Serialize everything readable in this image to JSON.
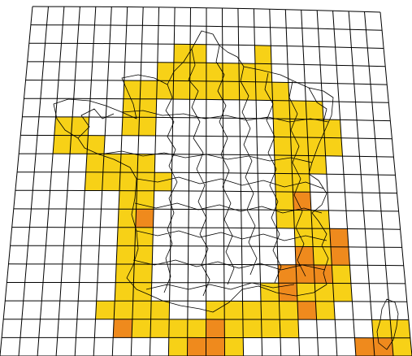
{
  "map": {
    "colors": {
      "background": "#ffffff",
      "grid_line": "#000000",
      "border_line": "#000000",
      "low": "#f7d117",
      "high": "#ef8a1d"
    },
    "grid": {
      "columns": 22,
      "rows": 19
    },
    "highlighted_cells": [
      {
        "c": 9,
        "r": 2,
        "level": "low"
      },
      {
        "c": 10,
        "r": 2,
        "level": "low"
      },
      {
        "c": 14,
        "r": 2,
        "level": "low"
      },
      {
        "c": 8,
        "r": 3,
        "level": "low"
      },
      {
        "c": 9,
        "r": 3,
        "level": "low"
      },
      {
        "c": 10,
        "r": 3,
        "level": "low"
      },
      {
        "c": 11,
        "r": 3,
        "level": "low"
      },
      {
        "c": 12,
        "r": 3,
        "level": "low"
      },
      {
        "c": 13,
        "r": 3,
        "level": "low"
      },
      {
        "c": 14,
        "r": 3,
        "level": "low"
      },
      {
        "c": 6,
        "r": 4,
        "level": "low"
      },
      {
        "c": 7,
        "r": 4,
        "level": "low"
      },
      {
        "c": 8,
        "r": 4,
        "level": "low"
      },
      {
        "c": 9,
        "r": 4,
        "level": "low"
      },
      {
        "c": 10,
        "r": 4,
        "level": "low"
      },
      {
        "c": 11,
        "r": 4,
        "level": "low"
      },
      {
        "c": 12,
        "r": 4,
        "level": "low"
      },
      {
        "c": 13,
        "r": 4,
        "level": "low"
      },
      {
        "c": 14,
        "r": 4,
        "level": "low"
      },
      {
        "c": 15,
        "r": 4,
        "level": "low"
      },
      {
        "c": 6,
        "r": 5,
        "level": "low"
      },
      {
        "c": 7,
        "r": 5,
        "level": "low"
      },
      {
        "c": 15,
        "r": 5,
        "level": "low"
      },
      {
        "c": 16,
        "r": 5,
        "level": "low"
      },
      {
        "c": 17,
        "r": 5,
        "level": "low"
      },
      {
        "c": 2,
        "r": 6,
        "level": "low"
      },
      {
        "c": 3,
        "r": 6,
        "level": "low"
      },
      {
        "c": 6,
        "r": 6,
        "level": "low"
      },
      {
        "c": 7,
        "r": 6,
        "level": "low"
      },
      {
        "c": 15,
        "r": 6,
        "level": "low"
      },
      {
        "c": 16,
        "r": 6,
        "level": "low"
      },
      {
        "c": 17,
        "r": 6,
        "level": "low"
      },
      {
        "c": 18,
        "r": 6,
        "level": "low"
      },
      {
        "c": 2,
        "r": 7,
        "level": "low"
      },
      {
        "c": 3,
        "r": 7,
        "level": "low"
      },
      {
        "c": 4,
        "r": 7,
        "level": "low"
      },
      {
        "c": 15,
        "r": 7,
        "level": "low"
      },
      {
        "c": 16,
        "r": 7,
        "level": "low"
      },
      {
        "c": 17,
        "r": 7,
        "level": "low"
      },
      {
        "c": 18,
        "r": 7,
        "level": "low"
      },
      {
        "c": 4,
        "r": 8,
        "level": "low"
      },
      {
        "c": 5,
        "r": 8,
        "level": "low"
      },
      {
        "c": 6,
        "r": 8,
        "level": "low"
      },
      {
        "c": 7,
        "r": 8,
        "level": "low"
      },
      {
        "c": 15,
        "r": 8,
        "level": "low"
      },
      {
        "c": 16,
        "r": 8,
        "level": "low"
      },
      {
        "c": 17,
        "r": 8,
        "level": "low"
      },
      {
        "c": 4,
        "r": 9,
        "level": "low"
      },
      {
        "c": 5,
        "r": 9,
        "level": "low"
      },
      {
        "c": 6,
        "r": 9,
        "level": "low"
      },
      {
        "c": 7,
        "r": 9,
        "level": "low"
      },
      {
        "c": 8,
        "r": 9,
        "level": "low"
      },
      {
        "c": 15,
        "r": 9,
        "level": "low"
      },
      {
        "c": 16,
        "r": 9,
        "level": "low"
      },
      {
        "c": 6,
        "r": 10,
        "level": "low"
      },
      {
        "c": 7,
        "r": 10,
        "level": "low"
      },
      {
        "c": 15,
        "r": 10,
        "level": "low"
      },
      {
        "c": 16,
        "r": 10,
        "level": "high"
      },
      {
        "c": 6,
        "r": 11,
        "level": "low"
      },
      {
        "c": 7,
        "r": 11,
        "level": "high"
      },
      {
        "c": 15,
        "r": 11,
        "level": "low"
      },
      {
        "c": 16,
        "r": 11,
        "level": "low"
      },
      {
        "c": 17,
        "r": 11,
        "level": "low"
      },
      {
        "c": 6,
        "r": 12,
        "level": "low"
      },
      {
        "c": 7,
        "r": 12,
        "level": "low"
      },
      {
        "c": 16,
        "r": 12,
        "level": "low"
      },
      {
        "c": 17,
        "r": 12,
        "level": "low"
      },
      {
        "c": 18,
        "r": 12,
        "level": "high"
      },
      {
        "c": 6,
        "r": 13,
        "level": "low"
      },
      {
        "c": 7,
        "r": 13,
        "level": "low"
      },
      {
        "c": 16,
        "r": 13,
        "level": "high"
      },
      {
        "c": 17,
        "r": 13,
        "level": "low"
      },
      {
        "c": 18,
        "r": 13,
        "level": "high"
      },
      {
        "c": 6,
        "r": 14,
        "level": "low"
      },
      {
        "c": 7,
        "r": 14,
        "level": "low"
      },
      {
        "c": 15,
        "r": 14,
        "level": "high"
      },
      {
        "c": 16,
        "r": 14,
        "level": "high"
      },
      {
        "c": 17,
        "r": 14,
        "level": "high"
      },
      {
        "c": 18,
        "r": 14,
        "level": "low"
      },
      {
        "c": 6,
        "r": 15,
        "level": "low"
      },
      {
        "c": 7,
        "r": 15,
        "level": "low"
      },
      {
        "c": 14,
        "r": 15,
        "level": "low"
      },
      {
        "c": 15,
        "r": 15,
        "level": "high"
      },
      {
        "c": 16,
        "r": 15,
        "level": "low"
      },
      {
        "c": 17,
        "r": 15,
        "level": "low"
      },
      {
        "c": 18,
        "r": 15,
        "level": "low"
      },
      {
        "c": 5,
        "r": 16,
        "level": "low"
      },
      {
        "c": 6,
        "r": 16,
        "level": "low"
      },
      {
        "c": 7,
        "r": 16,
        "level": "low"
      },
      {
        "c": 8,
        "r": 16,
        "level": "low"
      },
      {
        "c": 11,
        "r": 16,
        "level": "low"
      },
      {
        "c": 12,
        "r": 16,
        "level": "low"
      },
      {
        "c": 13,
        "r": 16,
        "level": "low"
      },
      {
        "c": 14,
        "r": 16,
        "level": "low"
      },
      {
        "c": 15,
        "r": 16,
        "level": "low"
      },
      {
        "c": 16,
        "r": 16,
        "level": "high"
      },
      {
        "c": 17,
        "r": 16,
        "level": "low"
      },
      {
        "c": 6,
        "r": 17,
        "level": "high"
      },
      {
        "c": 7,
        "r": 17,
        "level": "low"
      },
      {
        "c": 8,
        "r": 17,
        "level": "low"
      },
      {
        "c": 9,
        "r": 17,
        "level": "low"
      },
      {
        "c": 10,
        "r": 17,
        "level": "low"
      },
      {
        "c": 11,
        "r": 17,
        "level": "high"
      },
      {
        "c": 12,
        "r": 17,
        "level": "low"
      },
      {
        "c": 13,
        "r": 17,
        "level": "low"
      },
      {
        "c": 14,
        "r": 17,
        "level": "low"
      },
      {
        "c": 15,
        "r": 17,
        "level": "low"
      },
      {
        "c": 20,
        "r": 17,
        "level": "low"
      },
      {
        "c": 21,
        "r": 17,
        "level": "low"
      },
      {
        "c": 9,
        "r": 18,
        "level": "low"
      },
      {
        "c": 10,
        "r": 18,
        "level": "high"
      },
      {
        "c": 11,
        "r": 18,
        "level": "high"
      },
      {
        "c": 12,
        "r": 18,
        "level": "low"
      },
      {
        "c": 19,
        "r": 18,
        "level": "high"
      },
      {
        "c": 20,
        "r": 18,
        "level": "high"
      },
      {
        "c": 21,
        "r": 18,
        "level": "low"
      }
    ]
  }
}
